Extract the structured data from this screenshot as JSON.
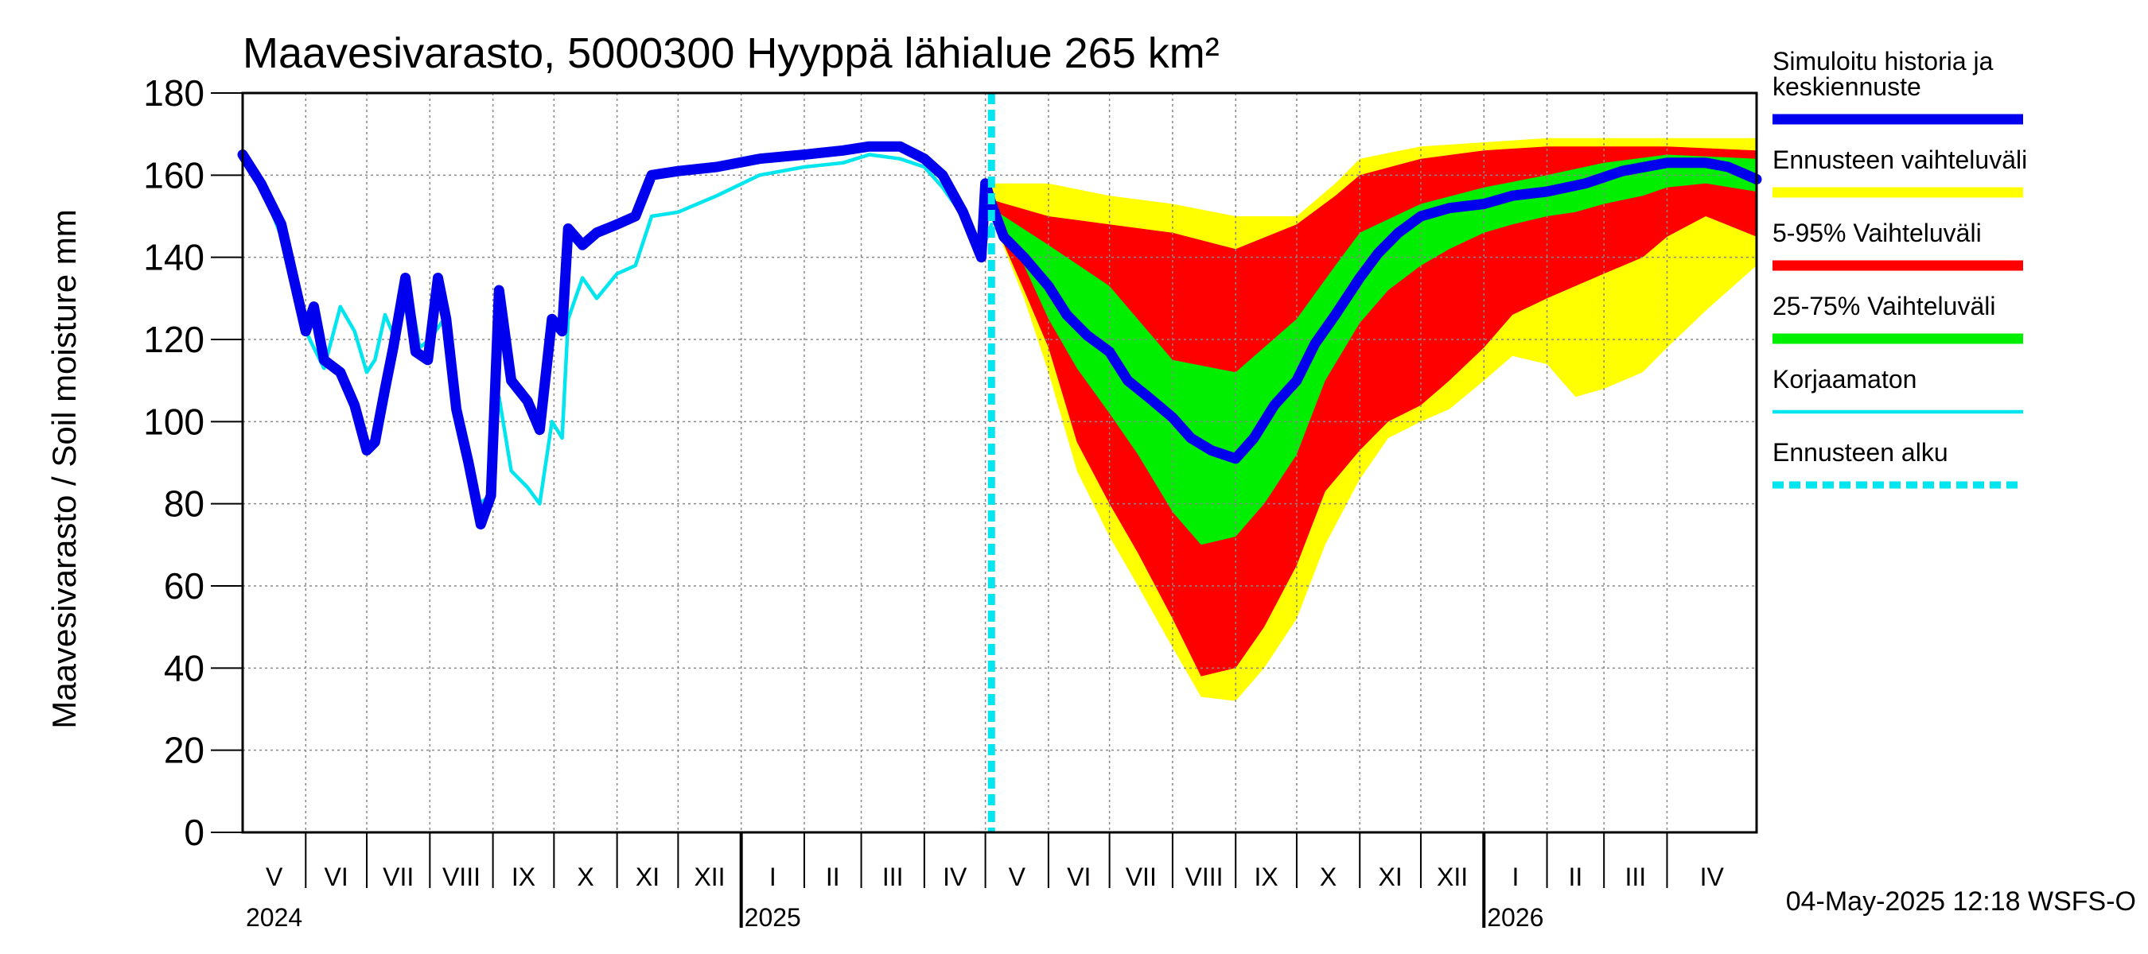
{
  "chart_data": {
    "type": "area",
    "title": "Maavesivarasto, 5000300 Hyyppä lähialue 265 km²",
    "ylabel": "Maavesivarasto / Soil moisture   mm",
    "ylim": [
      0,
      180
    ],
    "yticks": [
      0,
      20,
      40,
      60,
      80,
      100,
      120,
      140,
      160,
      180
    ],
    "xlim": [
      "2024-05-01",
      "2026-05-15"
    ],
    "grid": true,
    "legend_position": "right",
    "forecast_start": "2025-05-04",
    "months": [
      {
        "label": "V",
        "start": "2024-05-01"
      },
      {
        "label": "VI",
        "start": "2024-06-01"
      },
      {
        "label": "VII",
        "start": "2024-07-01"
      },
      {
        "label": "VIII",
        "start": "2024-08-01"
      },
      {
        "label": "IX",
        "start": "2024-09-01"
      },
      {
        "label": "X",
        "start": "2024-10-01"
      },
      {
        "label": "XI",
        "start": "2024-11-01"
      },
      {
        "label": "XII",
        "start": "2024-12-01"
      },
      {
        "label": "I",
        "start": "2025-01-01"
      },
      {
        "label": "II",
        "start": "2025-02-01"
      },
      {
        "label": "III",
        "start": "2025-03-01"
      },
      {
        "label": "IV",
        "start": "2025-04-01"
      },
      {
        "label": "V",
        "start": "2025-05-01"
      },
      {
        "label": "VI",
        "start": "2025-06-01"
      },
      {
        "label": "VII",
        "start": "2025-07-01"
      },
      {
        "label": "VIII",
        "start": "2025-08-01"
      },
      {
        "label": "IX",
        "start": "2025-09-01"
      },
      {
        "label": "X",
        "start": "2025-10-01"
      },
      {
        "label": "XI",
        "start": "2025-11-01"
      },
      {
        "label": "XII",
        "start": "2025-12-01"
      },
      {
        "label": "I",
        "start": "2026-01-01"
      },
      {
        "label": "II",
        "start": "2026-02-01"
      },
      {
        "label": "III",
        "start": "2026-03-01"
      },
      {
        "label": "IV",
        "start": "2026-04-01"
      }
    ],
    "years": [
      {
        "label": "2024",
        "date": "2024-05-01"
      },
      {
        "label": "2025",
        "date": "2025-01-01"
      },
      {
        "label": "2026",
        "date": "2026-01-01"
      }
    ],
    "series": [
      {
        "name": "Simuloitu historia ja keskiennuste",
        "color": "#0000ee",
        "points": [
          [
            "2024-05-01",
            165
          ],
          [
            "2024-05-10",
            158
          ],
          [
            "2024-05-20",
            148
          ],
          [
            "2024-06-01",
            122
          ],
          [
            "2024-06-05",
            128
          ],
          [
            "2024-06-10",
            115
          ],
          [
            "2024-06-18",
            112
          ],
          [
            "2024-06-25",
            104
          ],
          [
            "2024-07-01",
            93
          ],
          [
            "2024-07-05",
            95
          ],
          [
            "2024-07-10",
            108
          ],
          [
            "2024-07-14",
            118
          ],
          [
            "2024-07-20",
            135
          ],
          [
            "2024-07-25",
            117
          ],
          [
            "2024-07-31",
            115
          ],
          [
            "2024-08-05",
            135
          ],
          [
            "2024-08-09",
            125
          ],
          [
            "2024-08-14",
            103
          ],
          [
            "2024-08-20",
            90
          ],
          [
            "2024-08-26",
            75
          ],
          [
            "2024-08-31",
            82
          ],
          [
            "2024-09-04",
            132
          ],
          [
            "2024-09-10",
            110
          ],
          [
            "2024-09-18",
            105
          ],
          [
            "2024-09-24",
            98
          ],
          [
            "2024-09-30",
            125
          ],
          [
            "2024-10-05",
            122
          ],
          [
            "2024-10-08",
            147
          ],
          [
            "2024-10-15",
            143
          ],
          [
            "2024-10-22",
            146
          ],
          [
            "2024-11-01",
            148
          ],
          [
            "2024-11-10",
            150
          ],
          [
            "2024-11-18",
            160
          ],
          [
            "2024-12-01",
            161
          ],
          [
            "2024-12-20",
            162
          ],
          [
            "2025-01-10",
            164
          ],
          [
            "2025-02-01",
            165
          ],
          [
            "2025-02-20",
            166
          ],
          [
            "2025-03-05",
            167
          ],
          [
            "2025-03-20",
            167
          ],
          [
            "2025-04-01",
            164
          ],
          [
            "2025-04-10",
            160
          ],
          [
            "2025-04-20",
            151
          ],
          [
            "2025-04-29",
            140
          ],
          [
            "2025-05-01",
            158
          ],
          [
            "2025-05-04",
            153
          ],
          [
            "2025-05-10",
            145
          ],
          [
            "2025-05-20",
            140
          ],
          [
            "2025-06-01",
            133
          ],
          [
            "2025-06-10",
            126
          ],
          [
            "2025-06-20",
            121
          ],
          [
            "2025-07-01",
            117
          ],
          [
            "2025-07-10",
            110
          ],
          [
            "2025-07-20",
            106
          ],
          [
            "2025-08-01",
            101
          ],
          [
            "2025-08-10",
            96
          ],
          [
            "2025-08-20",
            93
          ],
          [
            "2025-09-01",
            91
          ],
          [
            "2025-09-10",
            96
          ],
          [
            "2025-09-20",
            104
          ],
          [
            "2025-10-01",
            110
          ],
          [
            "2025-10-10",
            119
          ],
          [
            "2025-10-20",
            126
          ],
          [
            "2025-11-01",
            135
          ],
          [
            "2025-11-10",
            141
          ],
          [
            "2025-11-20",
            146
          ],
          [
            "2025-12-01",
            150
          ],
          [
            "2025-12-15",
            152
          ],
          [
            "2026-01-01",
            153
          ],
          [
            "2026-01-15",
            155
          ],
          [
            "2026-02-01",
            156
          ],
          [
            "2026-02-20",
            158
          ],
          [
            "2026-03-10",
            161
          ],
          [
            "2026-04-01",
            163
          ],
          [
            "2026-04-20",
            163
          ],
          [
            "2026-05-01",
            162
          ],
          [
            "2026-05-15",
            159
          ]
        ]
      },
      {
        "name": "Korjaamaton",
        "color": "#00e5ee",
        "points": [
          [
            "2024-05-01",
            165
          ],
          [
            "2024-05-10",
            158
          ],
          [
            "2024-05-20",
            145
          ],
          [
            "2024-06-01",
            122
          ],
          [
            "2024-06-10",
            113
          ],
          [
            "2024-06-18",
            128
          ],
          [
            "2024-06-25",
            122
          ],
          [
            "2024-07-01",
            112
          ],
          [
            "2024-07-05",
            115
          ],
          [
            "2024-07-10",
            126
          ],
          [
            "2024-07-15",
            120
          ],
          [
            "2024-07-22",
            132
          ],
          [
            "2024-07-27",
            118
          ],
          [
            "2024-08-01",
            120
          ],
          [
            "2024-08-08",
            125
          ],
          [
            "2024-08-14",
            100
          ],
          [
            "2024-08-20",
            88
          ],
          [
            "2024-08-25",
            80
          ],
          [
            "2024-08-31",
            82
          ],
          [
            "2024-09-04",
            106
          ],
          [
            "2024-09-10",
            88
          ],
          [
            "2024-09-18",
            84
          ],
          [
            "2024-09-24",
            80
          ],
          [
            "2024-09-30",
            100
          ],
          [
            "2024-10-05",
            96
          ],
          [
            "2024-10-08",
            125
          ],
          [
            "2024-10-15",
            135
          ],
          [
            "2024-10-22",
            130
          ],
          [
            "2024-11-01",
            136
          ],
          [
            "2024-11-10",
            138
          ],
          [
            "2024-11-18",
            150
          ],
          [
            "2024-12-01",
            151
          ],
          [
            "2024-12-20",
            155
          ],
          [
            "2025-01-10",
            160
          ],
          [
            "2025-02-01",
            162
          ],
          [
            "2025-02-20",
            163
          ],
          [
            "2025-03-05",
            165
          ],
          [
            "2025-03-20",
            164
          ],
          [
            "2025-04-01",
            162
          ],
          [
            "2025-04-10",
            157
          ],
          [
            "2025-04-20",
            150
          ],
          [
            "2025-04-29",
            141
          ],
          [
            "2025-05-04",
            148
          ]
        ]
      }
    ],
    "bands": [
      {
        "name": "Ennusteen vaihteluväli",
        "color": "#ffff00",
        "upper": [
          [
            "2025-05-04",
            158
          ],
          [
            "2025-06-01",
            158
          ],
          [
            "2025-07-01",
            155
          ],
          [
            "2025-08-01",
            153
          ],
          [
            "2025-09-01",
            150
          ],
          [
            "2025-10-01",
            150
          ],
          [
            "2025-10-20",
            158
          ],
          [
            "2025-11-01",
            164
          ],
          [
            "2025-12-01",
            167
          ],
          [
            "2026-01-01",
            168
          ],
          [
            "2026-02-01",
            169
          ],
          [
            "2026-03-01",
            169
          ],
          [
            "2026-04-01",
            169
          ],
          [
            "2026-05-15",
            169
          ]
        ],
        "lower": [
          [
            "2025-05-04",
            150
          ],
          [
            "2025-05-20",
            130
          ],
          [
            "2025-06-01",
            112
          ],
          [
            "2025-06-15",
            88
          ],
          [
            "2025-07-01",
            72
          ],
          [
            "2025-07-15",
            60
          ],
          [
            "2025-08-01",
            45
          ],
          [
            "2025-08-15",
            33
          ],
          [
            "2025-09-01",
            32
          ],
          [
            "2025-09-15",
            40
          ],
          [
            "2025-10-01",
            52
          ],
          [
            "2025-10-15",
            70
          ],
          [
            "2025-11-01",
            86
          ],
          [
            "2025-11-15",
            96
          ],
          [
            "2025-12-01",
            100
          ],
          [
            "2025-12-15",
            103
          ],
          [
            "2026-01-01",
            110
          ],
          [
            "2026-01-15",
            116
          ],
          [
            "2026-02-01",
            114
          ],
          [
            "2026-02-15",
            106
          ],
          [
            "2026-03-01",
            108
          ],
          [
            "2026-03-20",
            112
          ],
          [
            "2026-04-01",
            118
          ],
          [
            "2026-04-20",
            127
          ],
          [
            "2026-05-15",
            138
          ]
        ]
      },
      {
        "name": "5-95% Vaihteluväli",
        "color": "#ff0000",
        "upper": [
          [
            "2025-05-04",
            154
          ],
          [
            "2025-06-01",
            150
          ],
          [
            "2025-07-01",
            148
          ],
          [
            "2025-08-01",
            146
          ],
          [
            "2025-09-01",
            142
          ],
          [
            "2025-10-01",
            148
          ],
          [
            "2025-10-20",
            155
          ],
          [
            "2025-11-01",
            160
          ],
          [
            "2025-12-01",
            164
          ],
          [
            "2026-01-01",
            166
          ],
          [
            "2026-02-01",
            167
          ],
          [
            "2026-03-01",
            167
          ],
          [
            "2026-04-01",
            167
          ],
          [
            "2026-05-15",
            166
          ]
        ],
        "lower": [
          [
            "2025-05-04",
            150
          ],
          [
            "2025-05-20",
            132
          ],
          [
            "2025-06-01",
            118
          ],
          [
            "2025-06-15",
            95
          ],
          [
            "2025-07-01",
            80
          ],
          [
            "2025-07-15",
            68
          ],
          [
            "2025-08-01",
            52
          ],
          [
            "2025-08-15",
            38
          ],
          [
            "2025-09-01",
            40
          ],
          [
            "2025-09-15",
            50
          ],
          [
            "2025-10-01",
            65
          ],
          [
            "2025-10-15",
            83
          ],
          [
            "2025-11-01",
            93
          ],
          [
            "2025-11-15",
            100
          ],
          [
            "2025-12-01",
            104
          ],
          [
            "2025-12-15",
            110
          ],
          [
            "2026-01-01",
            118
          ],
          [
            "2026-01-15",
            126
          ],
          [
            "2026-02-01",
            130
          ],
          [
            "2026-02-15",
            133
          ],
          [
            "2026-03-01",
            136
          ],
          [
            "2026-03-20",
            140
          ],
          [
            "2026-04-01",
            145
          ],
          [
            "2026-04-20",
            150
          ],
          [
            "2026-05-15",
            145
          ]
        ]
      },
      {
        "name": "25-75% Vaihteluväli",
        "color": "#00ee00",
        "upper": [
          [
            "2025-05-04",
            152
          ],
          [
            "2025-06-01",
            143
          ],
          [
            "2025-07-01",
            133
          ],
          [
            "2025-08-01",
            115
          ],
          [
            "2025-09-01",
            112
          ],
          [
            "2025-10-01",
            125
          ],
          [
            "2025-10-20",
            138
          ],
          [
            "2025-11-01",
            146
          ],
          [
            "2025-12-01",
            153
          ],
          [
            "2026-01-01",
            157
          ],
          [
            "2026-02-01",
            160
          ],
          [
            "2026-03-01",
            163
          ],
          [
            "2026-04-01",
            165
          ],
          [
            "2026-05-15",
            164
          ]
        ],
        "lower": [
          [
            "2025-05-04",
            150
          ],
          [
            "2025-05-20",
            138
          ],
          [
            "2025-06-01",
            125
          ],
          [
            "2025-06-15",
            113
          ],
          [
            "2025-07-01",
            102
          ],
          [
            "2025-07-15",
            92
          ],
          [
            "2025-08-01",
            78
          ],
          [
            "2025-08-15",
            70
          ],
          [
            "2025-09-01",
            72
          ],
          [
            "2025-09-15",
            80
          ],
          [
            "2025-10-01",
            92
          ],
          [
            "2025-10-15",
            110
          ],
          [
            "2025-11-01",
            124
          ],
          [
            "2025-11-15",
            132
          ],
          [
            "2025-12-01",
            138
          ],
          [
            "2025-12-15",
            142
          ],
          [
            "2026-01-01",
            146
          ],
          [
            "2026-01-15",
            148
          ],
          [
            "2026-02-01",
            150
          ],
          [
            "2026-02-15",
            151
          ],
          [
            "2026-03-01",
            153
          ],
          [
            "2026-03-20",
            155
          ],
          [
            "2026-04-01",
            157
          ],
          [
            "2026-04-20",
            158
          ],
          [
            "2026-05-15",
            156
          ]
        ]
      }
    ],
    "legend": [
      {
        "label": "Simuloitu historia ja keskiennuste",
        "color": "#0000ee",
        "style": "thick"
      },
      {
        "label": "Ennusteen vaihteluväli",
        "color": "#ffff00",
        "style": "thick"
      },
      {
        "label": "5-95% Vaihteluväli",
        "color": "#ff0000",
        "style": "thick"
      },
      {
        "label": "25-75% Vaihteluväli",
        "color": "#00ee00",
        "style": "thick"
      },
      {
        "label": "Korjaamaton",
        "color": "#00e5ee",
        "style": "thin"
      },
      {
        "label": "Ennusteen alku",
        "color": "#00e5ee",
        "style": "dashed"
      }
    ],
    "timestamp": "04-May-2025 12:18 WSFS-O"
  }
}
